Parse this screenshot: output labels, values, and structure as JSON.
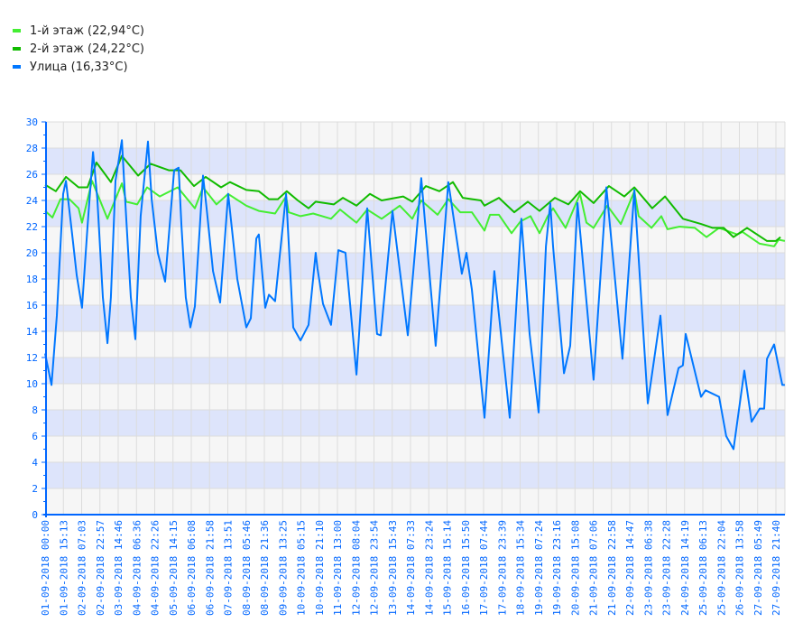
{
  "legend": [
    {
      "label": "1-й этаж (22,94°C)",
      "color": "#44ee33"
    },
    {
      "label": "2-й этаж (24,22°C)",
      "color": "#11bb00"
    },
    {
      "label": "Улица (16,33°C)",
      "color": "#0077ff"
    }
  ],
  "chart_data": {
    "type": "line",
    "title": "",
    "xlabel": "",
    "ylabel": "",
    "ylim": [
      0,
      30
    ],
    "ytick_step": 2,
    "grid": true,
    "legend_position": "top-left",
    "x_ticks": [
      "01-09-2018 00:00",
      "01-09-2018 15:13",
      "02-09-2018 07:03",
      "02-09-2018 22:57",
      "03-09-2018 14:46",
      "04-09-2018 06:36",
      "04-09-2018 22:26",
      "05-09-2018 14:15",
      "06-09-2018 06:08",
      "06-09-2018 21:58",
      "07-09-2018 13:51",
      "08-09-2018 05:46",
      "08-09-2018 21:36",
      "09-09-2018 13:25",
      "10-09-2018 05:15",
      "10-09-2018 21:10",
      "11-09-2018 13:00",
      "12-09-2018 08:04",
      "12-09-2018 23:54",
      "13-09-2018 15:43",
      "14-09-2018 07:33",
      "14-09-2018 23:24",
      "15-09-2018 15:14",
      "16-09-2018 15:50",
      "17-09-2018 07:44",
      "17-09-2018 23:39",
      "18-09-2018 15:34",
      "19-09-2018 07:24",
      "19-09-2018 23:16",
      "20-09-2018 15:08",
      "21-09-2018 07:06",
      "21-09-2018 22:58",
      "22-09-2018 14:47",
      "23-09-2018 06:38",
      "23-09-2018 22:28",
      "24-09-2018 14:19",
      "25-09-2018 06:13",
      "25-09-2018 22:04",
      "26-09-2018 13:58",
      "27-09-2018 05:49",
      "27-09-2018 21:40"
    ],
    "x_unit": "tick index",
    "series": [
      {
        "name": "1-й этаж",
        "color": "#44ee33",
        "points": [
          [
            0,
            23.2
          ],
          [
            0.4,
            22.7
          ],
          [
            0.84,
            24.1
          ],
          [
            1.33,
            24.1
          ],
          [
            1.83,
            23.4
          ],
          [
            2.02,
            22.3
          ],
          [
            2.57,
            25.5
          ],
          [
            3.41,
            22.6
          ],
          [
            4.2,
            25.3
          ],
          [
            4.44,
            23.9
          ],
          [
            5.04,
            23.7
          ],
          [
            5.58,
            25
          ],
          [
            6.27,
            24.3
          ],
          [
            7.26,
            25
          ],
          [
            8.2,
            23.4
          ],
          [
            8.64,
            25
          ],
          [
            9.38,
            23.7
          ],
          [
            10.02,
            24.5
          ],
          [
            11.01,
            23.6
          ],
          [
            11.7,
            23.2
          ],
          [
            12.59,
            23
          ],
          [
            13.19,
            24.3
          ],
          [
            13.33,
            23.1
          ],
          [
            13.98,
            22.8
          ],
          [
            14.67,
            23
          ],
          [
            15.65,
            22.6
          ],
          [
            16.15,
            23.3
          ],
          [
            17.04,
            22.3
          ],
          [
            17.63,
            23.3
          ],
          [
            18.42,
            22.6
          ],
          [
            19.41,
            23.6
          ],
          [
            20.1,
            22.6
          ],
          [
            20.59,
            24
          ],
          [
            21.48,
            22.9
          ],
          [
            22.07,
            24.1
          ],
          [
            22.72,
            23.1
          ],
          [
            23.36,
            23.1
          ],
          [
            24.05,
            21.7
          ],
          [
            24.35,
            22.9
          ],
          [
            24.84,
            22.9
          ],
          [
            25.53,
            21.5
          ],
          [
            26.02,
            22.4
          ],
          [
            26.57,
            22.8
          ],
          [
            27.06,
            21.5
          ],
          [
            27.51,
            22.8
          ],
          [
            27.8,
            23.4
          ],
          [
            28.49,
            21.9
          ],
          [
            29.28,
            24.5
          ],
          [
            29.63,
            22.3
          ],
          [
            30.02,
            21.9
          ],
          [
            30.77,
            23.6
          ],
          [
            31.51,
            22.2
          ],
          [
            32.25,
            24.7
          ],
          [
            32.49,
            22.8
          ],
          [
            33.19,
            21.9
          ],
          [
            33.73,
            22.8
          ],
          [
            34.07,
            21.8
          ],
          [
            34.72,
            22
          ],
          [
            35.56,
            21.9
          ],
          [
            36.2,
            21.2
          ],
          [
            36.89,
            21.9
          ],
          [
            37.88,
            21.4
          ],
          [
            38.17,
            21.6
          ],
          [
            39.11,
            20.7
          ],
          [
            39.9,
            20.5
          ],
          [
            40.15,
            21
          ],
          [
            40.49,
            20.9
          ]
        ]
      },
      {
        "name": "2-й этаж",
        "color": "#11bb00",
        "points": [
          [
            0,
            25.2
          ],
          [
            0.59,
            24.7
          ],
          [
            1.14,
            25.8
          ],
          [
            1.83,
            25
          ],
          [
            2.32,
            25
          ],
          [
            2.81,
            26.9
          ],
          [
            3.6,
            25.4
          ],
          [
            4.2,
            27.4
          ],
          [
            5.09,
            25.9
          ],
          [
            5.78,
            26.8
          ],
          [
            6.77,
            26.3
          ],
          [
            7.41,
            26.3
          ],
          [
            8.15,
            25.1
          ],
          [
            8.79,
            25.8
          ],
          [
            9.63,
            25
          ],
          [
            10.12,
            25.4
          ],
          [
            11.01,
            24.8
          ],
          [
            11.7,
            24.7
          ],
          [
            12.25,
            24.1
          ],
          [
            12.74,
            24.1
          ],
          [
            13.23,
            24.7
          ],
          [
            13.83,
            24
          ],
          [
            14.42,
            23.4
          ],
          [
            14.81,
            23.9
          ],
          [
            15.8,
            23.7
          ],
          [
            16.3,
            24.2
          ],
          [
            17.04,
            23.6
          ],
          [
            17.78,
            24.5
          ],
          [
            18.42,
            24
          ],
          [
            19.6,
            24.3
          ],
          [
            20.1,
            23.9
          ],
          [
            20.84,
            25.1
          ],
          [
            21.58,
            24.7
          ],
          [
            22.32,
            25.4
          ],
          [
            22.86,
            24.2
          ],
          [
            23.85,
            24
          ],
          [
            24.05,
            23.6
          ],
          [
            24.84,
            24.2
          ],
          [
            25.68,
            23.1
          ],
          [
            26.42,
            23.9
          ],
          [
            27.06,
            23.2
          ],
          [
            27.9,
            24.2
          ],
          [
            28.64,
            23.7
          ],
          [
            29.28,
            24.7
          ],
          [
            30.02,
            23.8
          ],
          [
            30.86,
            25.1
          ],
          [
            31.7,
            24.3
          ],
          [
            32.25,
            25
          ],
          [
            33.23,
            23.4
          ],
          [
            33.93,
            24.3
          ],
          [
            34.91,
            22.6
          ],
          [
            35.9,
            22.2
          ],
          [
            36.54,
            21.9
          ],
          [
            37.14,
            21.9
          ],
          [
            37.68,
            21.2
          ],
          [
            38.42,
            21.9
          ],
          [
            39.51,
            20.9
          ],
          [
            40,
            20.9
          ],
          [
            40.25,
            21.2
          ]
        ]
      },
      {
        "name": "Улица",
        "color": "#0077ff",
        "points": [
          [
            0,
            12.3
          ],
          [
            0.35,
            9.9
          ],
          [
            0.64,
            15.2
          ],
          [
            0.99,
            24.5
          ],
          [
            1.14,
            25.5
          ],
          [
            1.48,
            21.4
          ],
          [
            1.73,
            18.3
          ],
          [
            2.02,
            15.8
          ],
          [
            2.32,
            22
          ],
          [
            2.62,
            27.7
          ],
          [
            2.86,
            24.1
          ],
          [
            3.16,
            16.6
          ],
          [
            3.41,
            13.1
          ],
          [
            3.6,
            16.6
          ],
          [
            3.85,
            25.5
          ],
          [
            4.2,
            28.6
          ],
          [
            4.35,
            24.8
          ],
          [
            4.69,
            16.6
          ],
          [
            4.94,
            13.4
          ],
          [
            5.23,
            22.8
          ],
          [
            5.63,
            28.5
          ],
          [
            5.83,
            24.1
          ],
          [
            6.17,
            20
          ],
          [
            6.57,
            17.8
          ],
          [
            7.06,
            26.3
          ],
          [
            7.31,
            26.5
          ],
          [
            7.46,
            22.1
          ],
          [
            7.7,
            16.6
          ],
          [
            7.95,
            14.3
          ],
          [
            8.2,
            15.9
          ],
          [
            8.64,
            25.9
          ],
          [
            8.84,
            23.4
          ],
          [
            9.19,
            18.6
          ],
          [
            9.58,
            16.2
          ],
          [
            10.02,
            24.5
          ],
          [
            10.52,
            18
          ],
          [
            11.01,
            14.3
          ],
          [
            11.26,
            15
          ],
          [
            11.56,
            21.1
          ],
          [
            11.7,
            21.4
          ],
          [
            12.05,
            15.8
          ],
          [
            12.25,
            16.8
          ],
          [
            12.59,
            16.3
          ],
          [
            13.19,
            24.5
          ],
          [
            13.58,
            14.3
          ],
          [
            13.98,
            13.3
          ],
          [
            14.42,
            14.5
          ],
          [
            14.81,
            20
          ],
          [
            14.91,
            18.8
          ],
          [
            15.21,
            16.1
          ],
          [
            15.65,
            14.5
          ],
          [
            16.05,
            20.2
          ],
          [
            16.44,
            20
          ],
          [
            17.04,
            10.7
          ],
          [
            17.63,
            23.4
          ],
          [
            18.17,
            13.8
          ],
          [
            18.37,
            13.7
          ],
          [
            19.01,
            23.2
          ],
          [
            19.85,
            13.7
          ],
          [
            20.59,
            25.7
          ],
          [
            21.38,
            12.9
          ],
          [
            22.07,
            25.4
          ],
          [
            22.81,
            18.4
          ],
          [
            23.06,
            20
          ],
          [
            23.36,
            17.2
          ],
          [
            24.05,
            7.4
          ],
          [
            24.59,
            18.6
          ],
          [
            25.43,
            7.4
          ],
          [
            26.07,
            22.6
          ],
          [
            26.52,
            13.8
          ],
          [
            27.01,
            7.8
          ],
          [
            27.41,
            20.5
          ],
          [
            27.65,
            23.8
          ],
          [
            27.8,
            20.5
          ],
          [
            28.4,
            10.8
          ],
          [
            28.74,
            12.9
          ],
          [
            29.14,
            23.8
          ],
          [
            30.02,
            10.3
          ],
          [
            30.72,
            25
          ],
          [
            31.6,
            11.9
          ],
          [
            32.25,
            24.8
          ],
          [
            32.99,
            8.5
          ],
          [
            33.68,
            15.2
          ],
          [
            34.07,
            7.6
          ],
          [
            34.67,
            11.2
          ],
          [
            34.91,
            11.4
          ],
          [
            35.06,
            13.8
          ],
          [
            35.9,
            9
          ],
          [
            36.15,
            9.5
          ],
          [
            36.89,
            9
          ],
          [
            37.28,
            6
          ],
          [
            37.68,
            5
          ],
          [
            38.27,
            11
          ],
          [
            38.67,
            7.1
          ],
          [
            39.11,
            8.1
          ],
          [
            39.36,
            8.1
          ],
          [
            39.51,
            11.9
          ],
          [
            39.9,
            13
          ],
          [
            40.35,
            9.9
          ],
          [
            40.49,
            9.9
          ]
        ]
      }
    ]
  }
}
